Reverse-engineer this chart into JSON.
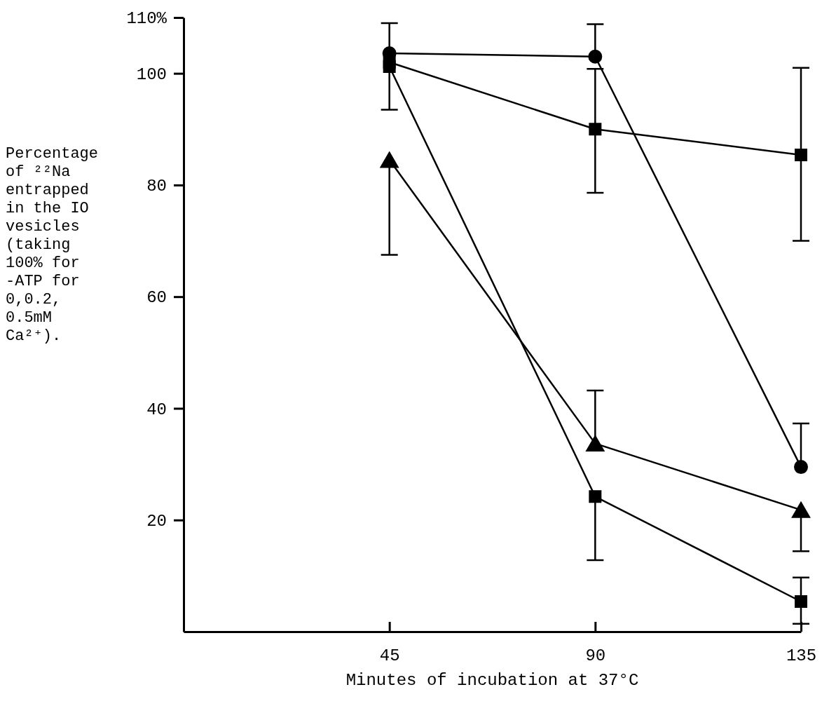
{
  "chart_data": {
    "type": "line",
    "xlabel": "Minutes of incubation at 37°C",
    "ylabel": "Percentage of ²²Na entrapped in the IO vesicles (taking 100% for -ATP for 0,0.2, 0.5mM Ca²⁺).",
    "x": [
      45,
      90,
      135
    ],
    "xlim": [
      0,
      135
    ],
    "xticks": [
      45,
      90,
      135
    ],
    "ylim": [
      0,
      110
    ],
    "yticks": [
      20,
      40,
      60,
      80,
      100,
      {
        "value": 110,
        "label": "110%"
      }
    ],
    "series": [
      {
        "color": "#000000",
        "marker": "circle",
        "values": [
          103.6,
          103,
          29.5
        ],
        "errors": [
          [
            103.6,
            109
          ],
          [
            103,
            108.8
          ],
          [
            29.5,
            37.3
          ]
        ]
      },
      {
        "color": "#000000",
        "marker": "square",
        "values": [
          102,
          90,
          85.4
        ],
        "errors": [
          null,
          [
            78.6,
            100.8
          ],
          [
            70,
            101
          ]
        ]
      },
      {
        "color": "#000000",
        "marker": "square",
        "values": [
          101.2,
          24.2,
          5.4
        ],
        "errors": [
          [
            93.5,
            101.2
          ],
          [
            12.8,
            24.2
          ],
          [
            1.4,
            9.7
          ]
        ]
      },
      {
        "color": "#000000",
        "marker": "triangle",
        "values": [
          84.5,
          33.7,
          21.8
        ],
        "errors": [
          [
            67.5,
            84.5
          ],
          [
            33.7,
            43.2
          ],
          [
            14.4,
            21.8
          ]
        ]
      }
    ]
  }
}
